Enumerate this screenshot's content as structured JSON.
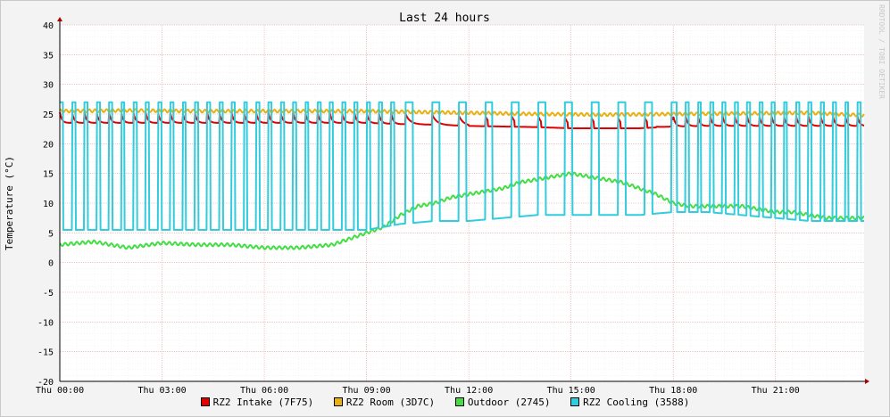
{
  "chart_data": {
    "type": "line",
    "title": "Last 24 hours",
    "ylabel": "Temperature (°C)",
    "watermark": "RRDTOOL / TOBI OETIKER",
    "ylim": [
      -20,
      40
    ],
    "yticks": [
      40,
      35,
      30,
      25,
      20,
      15,
      10,
      5,
      0,
      -5,
      -10,
      -15,
      -20
    ],
    "xlim_hours": [
      0,
      23.6
    ],
    "xtick_hours": [
      0,
      3,
      6,
      9,
      12,
      15,
      18,
      21
    ],
    "xtick_labels": [
      "Thu 00:00",
      "Thu 03:00",
      "Thu 06:00",
      "Thu 09:00",
      "Thu 12:00",
      "Thu 15:00",
      "Thu 18:00",
      "Thu 21:00"
    ],
    "grid": true,
    "legend_position": "bottom",
    "series": [
      {
        "name": "RZ2 Intake (7F75)",
        "color": "#e00000",
        "pattern": "sawtooth",
        "notes": "cycles ~23-25, flatter 22.5-23 from ~12:00 to ~18:00",
        "x": [
          0,
          1,
          2,
          3,
          4,
          5,
          6,
          7,
          8,
          9,
          10,
          11,
          12,
          13,
          14,
          15,
          16,
          17,
          18,
          19,
          20,
          21,
          22,
          23,
          23.6
        ],
        "y": [
          23.5,
          23.5,
          23.5,
          23.5,
          23.5,
          23.5,
          23.5,
          23.5,
          23.5,
          23.5,
          23.3,
          23.2,
          23,
          22.9,
          22.8,
          22.6,
          22.6,
          22.6,
          22.9,
          23,
          23,
          23,
          23,
          23,
          23
        ]
      },
      {
        "name": "RZ2 Room (3D7C)",
        "color": "#e8b010",
        "x": [
          0,
          2,
          4,
          6,
          8,
          9,
          10,
          12,
          14,
          16,
          18,
          20,
          22,
          23.6
        ],
        "y": [
          25.5,
          25.6,
          25.5,
          25.5,
          25.5,
          25.5,
          25.4,
          25.2,
          25,
          24.9,
          25,
          25.1,
          25.2,
          24.8
        ]
      },
      {
        "name": "Outdoor (2745)",
        "color": "#44dd44",
        "x": [
          0,
          1,
          2,
          3,
          4,
          5,
          6,
          7,
          8,
          8.5,
          9,
          9.5,
          10,
          10.5,
          11,
          11.5,
          12,
          12.5,
          13,
          13.5,
          14,
          14.5,
          15,
          15.5,
          16,
          16.5,
          17,
          17.5,
          18,
          18.5,
          19,
          19.5,
          20,
          20.5,
          21,
          21.5,
          22,
          22.5,
          23,
          23.6
        ],
        "y": [
          3,
          3.5,
          2.5,
          3.3,
          3,
          3,
          2.5,
          2.5,
          3,
          4,
          5,
          6,
          8,
          9.5,
          10,
          11,
          11.5,
          12,
          12.5,
          13.5,
          14,
          14.5,
          15,
          14.5,
          14,
          13.5,
          12.5,
          11.5,
          10,
          9.5,
          9.5,
          9.5,
          9.5,
          9,
          8.5,
          8.5,
          8,
          7.5,
          7.5,
          7.5
        ]
      },
      {
        "name": "RZ2 Cooling (3588)",
        "color": "#33ccdd",
        "pattern": "pulse",
        "notes": "pulses from baseline up to ~27",
        "x": [
          0,
          2,
          4,
          6,
          8,
          9,
          10,
          11,
          12,
          13,
          14,
          15,
          16,
          17,
          18,
          19,
          20,
          21,
          22,
          23,
          23.6
        ],
        "y": [
          5.5,
          5.5,
          5.5,
          5.5,
          5.5,
          5.5,
          6.5,
          7,
          7,
          7.5,
          8,
          8,
          8,
          8,
          8.5,
          8.5,
          8,
          7.5,
          7,
          7,
          7
        ]
      }
    ]
  }
}
